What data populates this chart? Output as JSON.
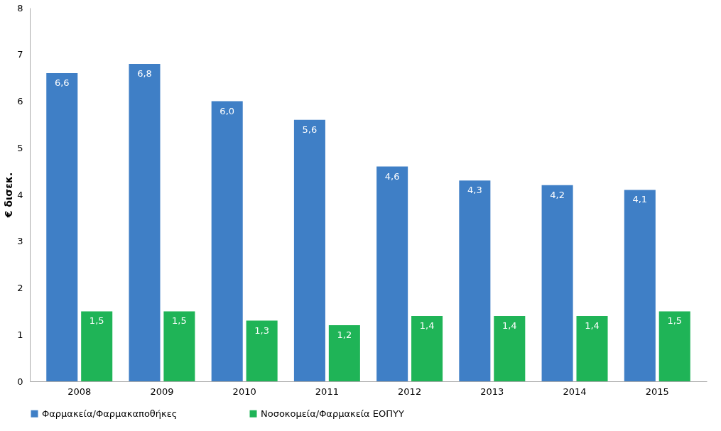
{
  "chart_data": {
    "type": "bar",
    "ylabel": "€ δισεκ.",
    "categories": [
      "2008",
      "2009",
      "2010",
      "2011",
      "2012",
      "2013",
      "2014",
      "2015"
    ],
    "series": [
      {
        "name": "Φαρμακεία/Φαρμακαποθήκες",
        "color": "#3f7fc6",
        "values": [
          6.6,
          6.8,
          6.0,
          5.6,
          4.6,
          4.3,
          4.2,
          4.1
        ],
        "value_labels": [
          "6,6",
          "6,8",
          "6,0",
          "5,6",
          "4,6",
          "4,3",
          "4,2",
          "4,1"
        ]
      },
      {
        "name": "Νοσοκομεία/Φαρμακεία ΕΟΠΥΥ",
        "color": "#1fb457",
        "values": [
          1.5,
          1.5,
          1.3,
          1.2,
          1.4,
          1.4,
          1.4,
          1.5
        ],
        "value_labels": [
          "1,5",
          "1,5",
          "1,3",
          "1,2",
          "1,4",
          "1,4",
          "1,4",
          "1,5"
        ]
      }
    ],
    "ylim": [
      0,
      8
    ],
    "yticks": [
      0,
      1,
      2,
      3,
      4,
      5,
      6,
      7,
      8
    ],
    "grid": false,
    "legend": "bottom"
  }
}
